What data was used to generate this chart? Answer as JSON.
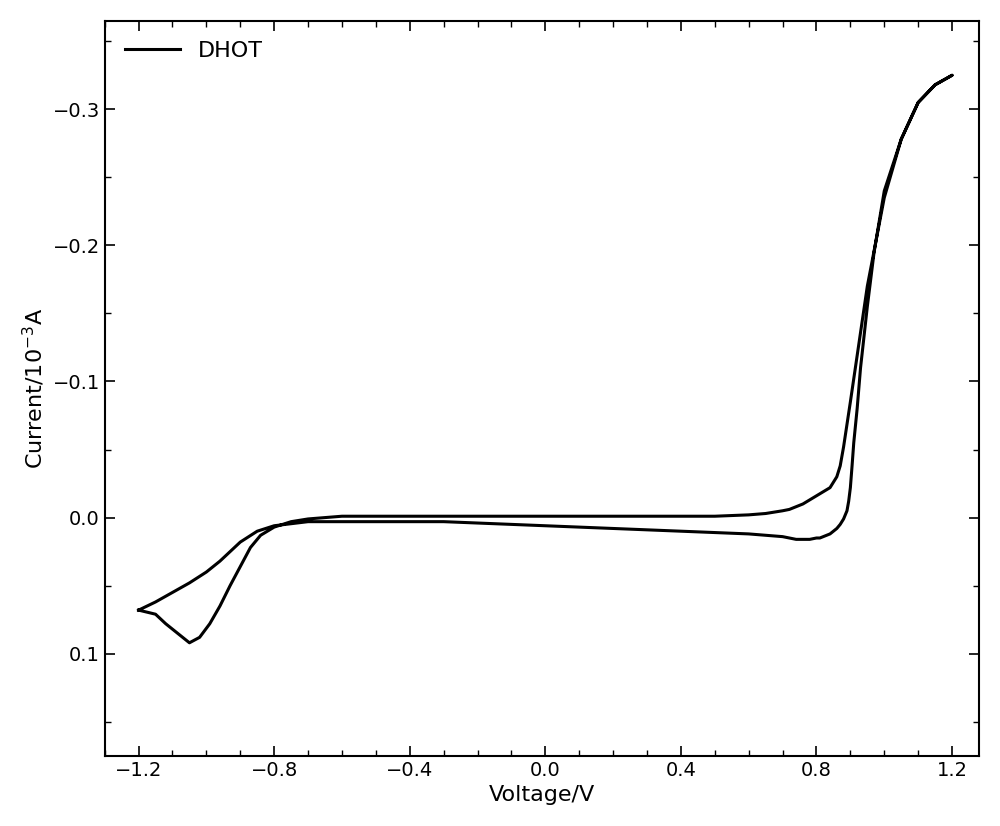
{
  "xlabel": "Voltage/V",
  "ylabel": "Current/10$^{-3}$A",
  "xlim": [
    -1.3,
    1.28
  ],
  "ylim": [
    0.175,
    -0.365
  ],
  "xticks": [
    -1.2,
    -0.8,
    -0.4,
    0.0,
    0.4,
    0.8,
    1.2
  ],
  "yticks": [
    -0.3,
    -0.2,
    -0.1,
    0.0,
    0.1
  ],
  "legend_label": "DHOT",
  "line_color": "#000000",
  "line_width": 2.2,
  "background_color": "#ffffff",
  "axis_fontsize": 16,
  "tick_fontsize": 14,
  "fwd_v": [
    -1.2,
    -1.15,
    -1.12,
    -1.08,
    -1.05,
    -1.02,
    -0.99,
    -0.96,
    -0.93,
    -0.9,
    -0.87,
    -0.84,
    -0.8,
    -0.75,
    -0.7,
    -0.6,
    -0.5,
    -0.4,
    -0.3,
    -0.2,
    -0.1,
    0.0,
    0.1,
    0.2,
    0.3,
    0.4,
    0.5,
    0.6,
    0.65,
    0.7,
    0.72,
    0.74,
    0.76,
    0.78,
    0.8,
    0.82,
    0.84,
    0.845,
    0.85,
    0.855,
    0.86,
    0.87,
    0.88,
    0.9,
    0.95,
    1.0,
    1.05,
    1.1,
    1.15,
    1.2
  ],
  "fwd_i": [
    0.068,
    0.071,
    0.078,
    0.086,
    0.092,
    0.088,
    0.078,
    0.065,
    0.05,
    0.036,
    0.022,
    0.013,
    0.007,
    0.003,
    0.001,
    -0.001,
    -0.001,
    -0.001,
    -0.001,
    -0.001,
    -0.001,
    -0.001,
    -0.001,
    -0.001,
    -0.001,
    -0.001,
    -0.001,
    -0.002,
    -0.003,
    -0.005,
    -0.006,
    -0.008,
    -0.01,
    -0.013,
    -0.016,
    -0.019,
    -0.022,
    -0.024,
    -0.026,
    -0.028,
    -0.03,
    -0.038,
    -0.052,
    -0.085,
    -0.17,
    -0.235,
    -0.278,
    -0.305,
    -0.318,
    -0.325
  ],
  "rev_v": [
    1.2,
    1.15,
    1.1,
    1.05,
    1.0,
    0.97,
    0.95,
    0.93,
    0.92,
    0.91,
    0.905,
    0.9,
    0.895,
    0.89,
    0.88,
    0.87,
    0.86,
    0.85,
    0.84,
    0.83,
    0.82,
    0.81,
    0.8,
    0.78,
    0.76,
    0.74,
    0.72,
    0.7,
    0.65,
    0.6,
    0.5,
    0.4,
    0.3,
    0.2,
    0.1,
    0.0,
    -0.1,
    -0.2,
    -0.3,
    -0.4,
    -0.5,
    -0.6,
    -0.7,
    -0.8,
    -0.85,
    -0.9,
    -0.93,
    -0.96,
    -1.0,
    -1.05,
    -1.1,
    -1.15,
    -1.2
  ],
  "rev_i": [
    -0.325,
    -0.318,
    -0.305,
    -0.278,
    -0.24,
    -0.195,
    -0.155,
    -0.11,
    -0.08,
    -0.055,
    -0.038,
    -0.022,
    -0.012,
    -0.005,
    0.001,
    0.005,
    0.008,
    0.01,
    0.012,
    0.013,
    0.014,
    0.015,
    0.015,
    0.016,
    0.016,
    0.016,
    0.015,
    0.014,
    0.013,
    0.012,
    0.011,
    0.01,
    0.009,
    0.008,
    0.007,
    0.006,
    0.005,
    0.004,
    0.003,
    0.003,
    0.003,
    0.003,
    0.003,
    0.006,
    0.01,
    0.018,
    0.025,
    0.032,
    0.04,
    0.048,
    0.055,
    0.062,
    0.068
  ]
}
